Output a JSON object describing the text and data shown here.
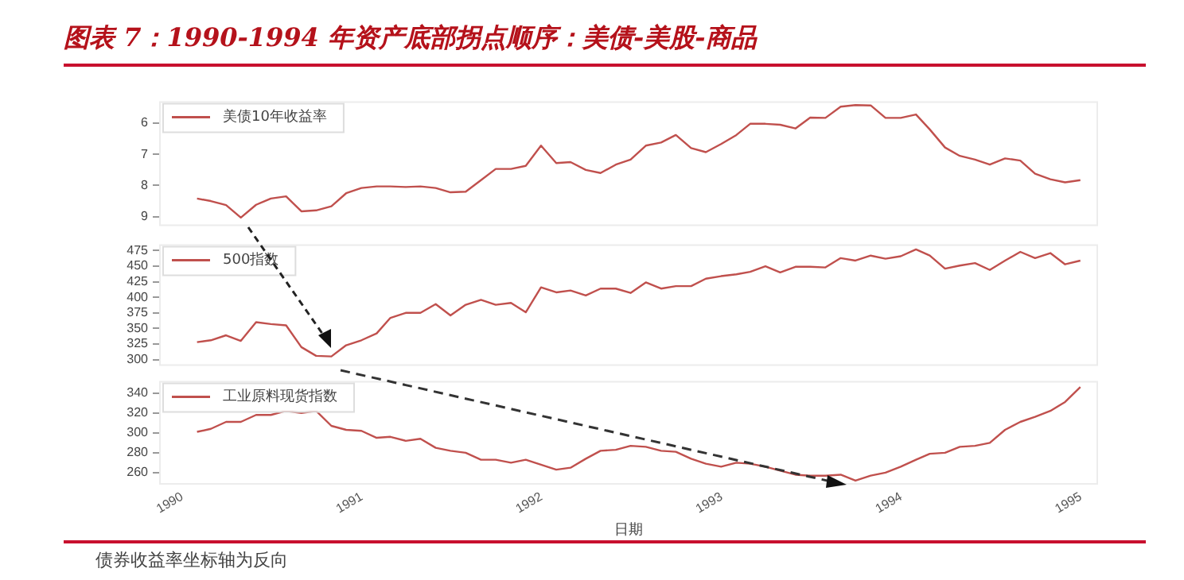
{
  "chart_data": [
    {
      "type": "line",
      "title": "图表 7：1990-1994 年资产底部拐点顺序：美债-美股-商品",
      "legend": "top left",
      "marker": "none",
      "tick_labels": "y",
      "x": [
        "1990-01-31",
        "1990-02-28",
        "1990-03-31",
        "1990-04-30",
        "1990-05-31",
        "1990-06-30",
        "1990-07-31",
        "1990-08-31",
        "1990-09-30",
        "1990-10-31",
        "1990-11-30",
        "1990-12-31",
        "1991-01-31",
        "1991-02-28",
        "1991-03-31",
        "1991-04-30",
        "1991-05-31",
        "1991-06-30",
        "1991-07-31",
        "1991-08-31",
        "1991-09-30",
        "1991-10-31",
        "1991-11-30",
        "1991-12-31",
        "1992-01-31",
        "1992-02-29",
        "1992-03-31",
        "1992-04-30",
        "1992-05-31",
        "1992-06-30",
        "1992-07-31",
        "1992-08-31",
        "1992-09-30",
        "1992-10-31",
        "1992-11-30",
        "1992-12-31",
        "1993-01-31",
        "1993-02-28",
        "1993-03-31",
        "1993-04-30",
        "1993-05-31",
        "1993-06-30",
        "1993-07-31",
        "1993-08-31",
        "1993-09-30",
        "1993-10-31",
        "1993-11-30",
        "1993-12-31",
        "1994-01-31",
        "1994-02-28",
        "1994-03-31",
        "1994-04-30",
        "1994-05-31",
        "1994-06-30",
        "1994-07-31",
        "1994-08-31",
        "1994-09-30",
        "1994-10-31",
        "1994-11-30",
        "1994-12-31"
      ],
      "xlim": [
        "1989-11-15",
        "1995-02-05"
      ],
      "xticks": [
        "1990",
        "1991",
        "1992",
        "1993",
        "1994",
        "1995"
      ],
      "ylim": [
        9.3,
        5.3
      ],
      "yticks": [
        6,
        7,
        8,
        9
      ],
      "series": [
        {
          "name": "美债10年收益率",
          "color": "#c0504d",
          "values": [
            8.42,
            8.5,
            8.63,
            9.03,
            8.62,
            8.42,
            8.35,
            8.83,
            8.8,
            8.67,
            8.25,
            8.08,
            8.03,
            8.03,
            8.05,
            8.03,
            8.08,
            8.22,
            8.2,
            7.83,
            7.47,
            7.47,
            7.37,
            6.72,
            7.28,
            7.25,
            7.5,
            7.6,
            7.33,
            7.17,
            6.72,
            6.62,
            6.38,
            6.8,
            6.93,
            6.67,
            6.38,
            6.02,
            6.02,
            6.05,
            6.17,
            5.82,
            5.83,
            5.47,
            5.42,
            5.43,
            5.83,
            5.83,
            5.72,
            6.2,
            6.78,
            7.05,
            7.17,
            7.33,
            7.13,
            7.2,
            7.62,
            7.8,
            7.9,
            7.83
          ]
        }
      ]
    },
    {
      "type": "line",
      "legend": "top left",
      "marker": "none",
      "tick_labels": "y",
      "x": [
        "1990-01-31",
        "1990-02-28",
        "1990-03-31",
        "1990-04-30",
        "1990-05-31",
        "1990-06-30",
        "1990-07-31",
        "1990-08-31",
        "1990-09-30",
        "1990-10-31",
        "1990-11-30",
        "1990-12-31",
        "1991-01-31",
        "1991-02-28",
        "1991-03-31",
        "1991-04-30",
        "1991-05-31",
        "1991-06-30",
        "1991-07-31",
        "1991-08-31",
        "1991-09-30",
        "1991-10-31",
        "1991-11-30",
        "1991-12-31",
        "1992-01-31",
        "1992-02-29",
        "1992-03-31",
        "1992-04-30",
        "1992-05-31",
        "1992-06-30",
        "1992-07-31",
        "1992-08-31",
        "1992-09-30",
        "1992-10-31",
        "1992-11-30",
        "1992-12-31",
        "1993-01-31",
        "1993-02-28",
        "1993-03-31",
        "1993-04-30",
        "1993-05-31",
        "1993-06-30",
        "1993-07-31",
        "1993-08-31",
        "1993-09-30",
        "1993-10-31",
        "1993-11-30",
        "1993-12-31",
        "1994-01-31",
        "1994-02-28",
        "1994-03-31",
        "1994-04-30",
        "1994-05-31",
        "1994-06-30",
        "1994-07-31",
        "1994-08-31",
        "1994-09-30",
        "1994-10-31",
        "1994-11-30",
        "1994-12-31"
      ],
      "xlim": [
        "1989-11-15",
        "1995-02-05"
      ],
      "xticks": [
        "1990",
        "1991",
        "1992",
        "1993",
        "1994",
        "1995"
      ],
      "ylim": [
        290,
        485
      ],
      "yticks": [
        300,
        325,
        350,
        375,
        400,
        425,
        450,
        475
      ],
      "series": [
        {
          "name": "500指数",
          "color": "#c0504d",
          "values": [
            328,
            331,
            339,
            330,
            360,
            357,
            355,
            320,
            306,
            305,
            323,
            331,
            342,
            367,
            375,
            375,
            389,
            371,
            388,
            396,
            388,
            391,
            376,
            416,
            408,
            411,
            403,
            414,
            414,
            407,
            424,
            414,
            418,
            418,
            430,
            434,
            437,
            441,
            450,
            440,
            449,
            449,
            448,
            463,
            459,
            467,
            462,
            466,
            477,
            467,
            446,
            451,
            455,
            444,
            459,
            473,
            463,
            471,
            453,
            459
          ]
        }
      ]
    },
    {
      "type": "line",
      "legend": "top left",
      "marker": "none",
      "xlabel": "日期",
      "annotations": [
        "债券收益率坐标轴为反向"
      ],
      "x": [
        "1990-01-31",
        "1990-02-28",
        "1990-03-31",
        "1990-04-30",
        "1990-05-31",
        "1990-06-30",
        "1990-07-31",
        "1990-08-31",
        "1990-09-30",
        "1990-10-31",
        "1990-11-30",
        "1990-12-31",
        "1991-01-31",
        "1991-02-28",
        "1991-03-31",
        "1991-04-30",
        "1991-05-31",
        "1991-06-30",
        "1991-07-31",
        "1991-08-31",
        "1991-09-30",
        "1991-10-31",
        "1991-11-30",
        "1991-12-31",
        "1992-01-31",
        "1992-02-29",
        "1992-03-31",
        "1992-04-30",
        "1992-05-31",
        "1992-06-30",
        "1992-07-31",
        "1992-08-31",
        "1992-09-30",
        "1992-10-31",
        "1992-11-30",
        "1992-12-31",
        "1993-01-31",
        "1993-02-28",
        "1993-03-31",
        "1993-04-30",
        "1993-05-31",
        "1993-06-30",
        "1993-07-31",
        "1993-08-31",
        "1993-09-30",
        "1993-10-31",
        "1993-11-30",
        "1993-12-31",
        "1994-01-31",
        "1994-02-28",
        "1994-03-31",
        "1994-04-30",
        "1994-05-31",
        "1994-06-30",
        "1994-07-31",
        "1994-08-31",
        "1994-09-30",
        "1994-10-31",
        "1994-11-30",
        "1994-12-31"
      ],
      "xlim": [
        "1989-11-15",
        "1995-02-05"
      ],
      "xticks": [
        "1990",
        "1991",
        "1992",
        "1993",
        "1994",
        "1995"
      ],
      "ylim": [
        248,
        352
      ],
      "yticks": [
        260,
        280,
        300,
        320,
        340
      ],
      "series": [
        {
          "name": "工业原料现货指数",
          "color": "#c0504d",
          "values": [
            301,
            304,
            311,
            311,
            318,
            318,
            322,
            320,
            322,
            307,
            303,
            302,
            295,
            296,
            292,
            294,
            285,
            282,
            280,
            273,
            273,
            270,
            273,
            268,
            263,
            265,
            274,
            282,
            283,
            287,
            286,
            282,
            281,
            274,
            269,
            266,
            270,
            269,
            266,
            262,
            258,
            257,
            257,
            258,
            252,
            257,
            260,
            266,
            273,
            279,
            280,
            286,
            287,
            290,
            303,
            311,
            316,
            322,
            331,
            346
          ]
        }
      ]
    }
  ]
}
